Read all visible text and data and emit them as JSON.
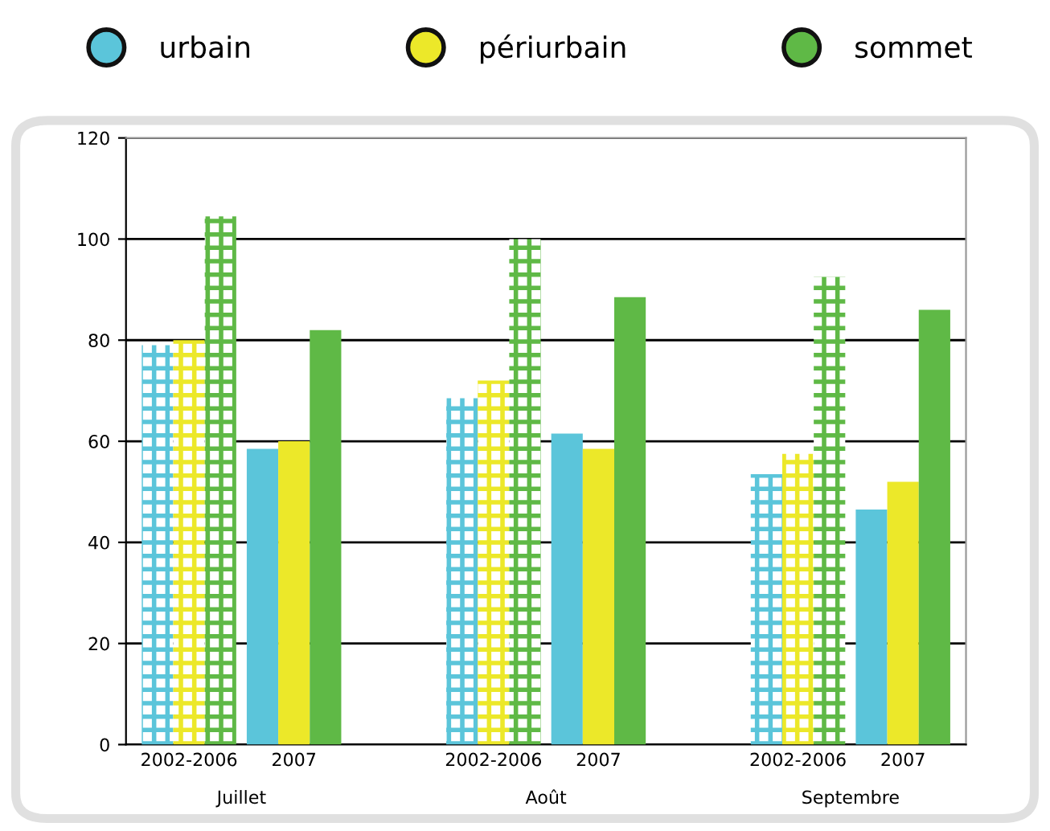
{
  "chart_data": {
    "type": "bar",
    "categories": [
      "2002-2006",
      "2007",
      "2002-2006",
      "2007",
      "2002-2006",
      "2007"
    ],
    "series": [
      {
        "name": "urbain",
        "color": "#5bc5da",
        "values": [
          79,
          58.5,
          68.5,
          61.5,
          53.5,
          46.5
        ]
      },
      {
        "name": "périurbain",
        "color": "#ece829",
        "values": [
          80,
          60,
          72,
          58.5,
          57.5,
          52
        ]
      },
      {
        "name": "sommet",
        "color": "#5fb946",
        "values": [
          104.5,
          82,
          100,
          88.5,
          92.5,
          86
        ]
      }
    ],
    "annotations": [
      "Juillet",
      "Août",
      "Septembre"
    ],
    "ylim": [
      0,
      120
    ],
    "yticks": [
      0,
      20,
      40,
      60,
      80,
      100,
      120
    ],
    "grid": "y",
    "legend": "top"
  }
}
